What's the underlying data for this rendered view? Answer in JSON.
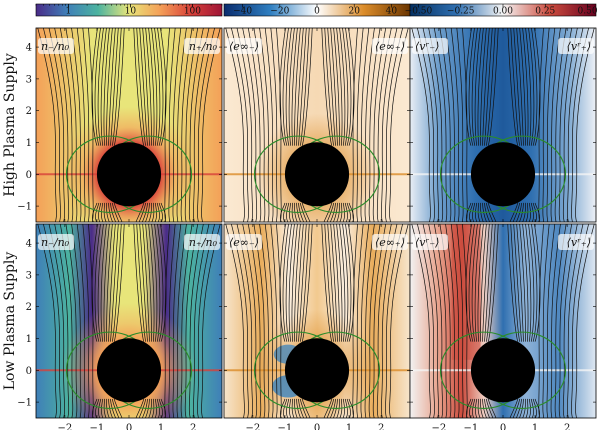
{
  "chart_data": {
    "type": "heatmap",
    "layout": {
      "rows": 2,
      "cols": 3
    },
    "row_labels": [
      "High Plasma Supply",
      "Low Plasma Supply"
    ],
    "x": {
      "lim": [
        -2.9,
        2.9
      ],
      "ticks": [
        -2,
        -1,
        0,
        1,
        2
      ],
      "tick_labels": [
        "−2",
        "−1",
        "0",
        "1",
        "2"
      ]
    },
    "y": {
      "lim": [
        -1.5,
        4.6
      ],
      "ticks": [
        -1,
        0,
        1,
        2,
        3,
        4
      ],
      "tick_labels": [
        "−1",
        "0",
        "1",
        "2",
        "3",
        "4"
      ]
    },
    "horizon_radius": 1,
    "colorbars": [
      {
        "name": "density",
        "scale": "log",
        "range": [
          0.3,
          300
        ],
        "ticks": [
          1,
          10,
          100
        ],
        "tick_labels": [
          "1",
          "10",
          "100"
        ],
        "colors": [
          "#4a2b88",
          "#3f7fb8",
          "#4cb3a0",
          "#e8e57a",
          "#f4a058",
          "#d8413a",
          "#9e1436"
        ]
      },
      {
        "name": "energy",
        "scale": "linear",
        "range": [
          -50,
          50
        ],
        "ticks": [
          -40,
          -20,
          0,
          20,
          40
        ],
        "tick_labels": [
          "−40",
          "−20",
          "0",
          "20",
          "40"
        ],
        "colors": [
          "#0a2c6e",
          "#2f7fc1",
          "#ffffff",
          "#dc8d2a",
          "#6b3500"
        ]
      },
      {
        "name": "velocity",
        "scale": "linear",
        "range": [
          -0.55,
          0.55
        ],
        "ticks": [
          -0.5,
          -0.25,
          0,
          0.25,
          0.5
        ],
        "tick_labels": [
          "−0.50",
          "−0.25",
          "0.00",
          "0.25",
          "0.50"
        ],
        "colors": [
          "#053061",
          "#2f6fb0",
          "#f5f5f5",
          "#cc4c3e",
          "#67001f"
        ]
      }
    ],
    "panel_labels": [
      {
        "left": "n₋/n₀",
        "right": "n₊/n₀"
      },
      {
        "left": "⟨e∞₋⟩",
        "right": "⟨e∞₊⟩"
      },
      {
        "left": "⟨vʳ₋⟩",
        "right": "⟨vʳ₊⟩"
      }
    ],
    "colors": {
      "field_lines": "#111111",
      "green_curves": "#2a8c2a",
      "horizon": "#000000"
    }
  }
}
